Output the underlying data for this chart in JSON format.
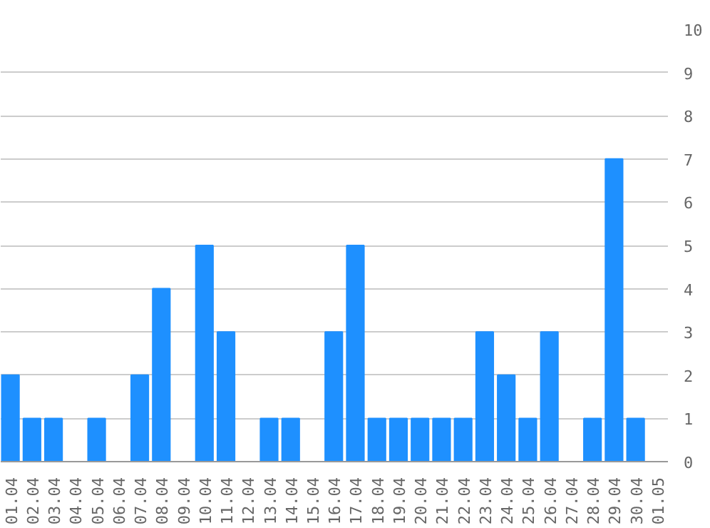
{
  "chart_data": {
    "type": "bar",
    "categories": [
      "01.04",
      "02.04",
      "03.04",
      "04.04",
      "05.04",
      "06.04",
      "07.04",
      "08.04",
      "09.04",
      "10.04",
      "11.04",
      "12.04",
      "13.04",
      "14.04",
      "15.04",
      "16.04",
      "17.04",
      "18.04",
      "19.04",
      "20.04",
      "21.04",
      "22.04",
      "23.04",
      "24.04",
      "25.04",
      "26.04",
      "27.04",
      "28.04",
      "29.04",
      "30.04",
      "01.05"
    ],
    "values": [
      2,
      1,
      1,
      0,
      1,
      0,
      2,
      4,
      0,
      5,
      3,
      0,
      1,
      1,
      0,
      3,
      5,
      1,
      1,
      1,
      1,
      1,
      3,
      2,
      1,
      3,
      0,
      1,
      7,
      1,
      0
    ],
    "color": "#1e90ff",
    "ylim": [
      0,
      10
    ],
    "yticks": [
      0,
      1,
      2,
      3,
      4,
      5,
      6,
      7,
      8,
      9,
      10
    ],
    "grid": "y"
  }
}
